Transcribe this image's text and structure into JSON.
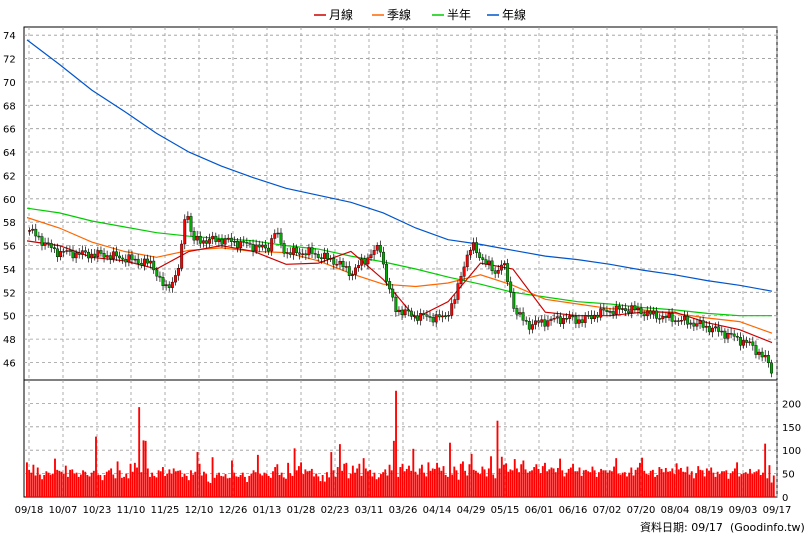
{
  "chart_data": [
    {
      "type": "line",
      "legend": [
        "月線",
        "季線",
        "半年",
        "年線"
      ],
      "colors": {
        "candle_up": "#ff0000",
        "candle_down": "#00aa00",
        "月線": "#cc0000",
        "季線": "#ff6600",
        "半年": "#00cc00",
        "年線": "#0055cc",
        "volume": "#ff0000",
        "grid": "#999999"
      },
      "x_ticks": [
        "09/18",
        "10/07",
        "10/23",
        "11/10",
        "11/25",
        "12/10",
        "12/26",
        "01/13",
        "01/28",
        "02/23",
        "03/11",
        "03/26",
        "04/14",
        "04/29",
        "05/15",
        "06/01",
        "06/16",
        "07/02",
        "07/20",
        "08/04",
        "08/19",
        "09/03",
        "09/17"
      ],
      "y_ticks": [
        46,
        48,
        50,
        52,
        54,
        56,
        58,
        60,
        62,
        64,
        66,
        68,
        70,
        72,
        74
      ],
      "ylim": [
        44.5,
        74.7
      ],
      "series": [
        {
          "name": "年線",
          "values": [
            73.6,
            71.5,
            69.3,
            67.5,
            65.6,
            64.0,
            62.8,
            61.8,
            60.9,
            60.3,
            59.7,
            58.8,
            57.5,
            56.5,
            56.1,
            55.6,
            55.1,
            54.8,
            54.4,
            53.9,
            53.5,
            53.0,
            52.6,
            52.1
          ]
        },
        {
          "name": "半年",
          "values": [
            59.2,
            58.8,
            58.1,
            57.6,
            57.1,
            56.8,
            56.6,
            56.4,
            56.0,
            55.7,
            55.1,
            54.6,
            54.0,
            53.3,
            52.7,
            52.0,
            51.6,
            51.2,
            51.0,
            50.7,
            50.5,
            50.2,
            50.0,
            50.0
          ]
        },
        {
          "name": "季線",
          "values": [
            58.4,
            57.5,
            56.3,
            55.5,
            55.0,
            55.6,
            55.8,
            55.5,
            55.4,
            54.7,
            53.6,
            52.7,
            52.5,
            52.8,
            53.5,
            52.6,
            51.4,
            51.0,
            50.6,
            50.5,
            50.2,
            49.8,
            49.5,
            48.5
          ]
        },
        {
          "name": "月線",
          "values": [
            56.4,
            56.0,
            55.0,
            54.7,
            54.0,
            55.5,
            56.0,
            55.5,
            54.4,
            54.5,
            55.5,
            53.1,
            49.8,
            51.2,
            54.5,
            54.0,
            50.3,
            50.0,
            50.0,
            50.3,
            50.3,
            49.4,
            48.8,
            47.7
          ]
        }
      ],
      "price_path": [
        [
          0,
          57.3
        ],
        [
          1,
          55.5
        ],
        [
          2,
          55.3
        ],
        [
          3,
          55.2
        ],
        [
          4,
          54.8
        ],
        [
          4.8,
          54.4
        ],
        [
          5.3,
          52.2
        ],
        [
          5.8,
          53.7
        ],
        [
          6,
          56.5
        ],
        [
          6.1,
          59.5
        ],
        [
          6.4,
          56.4
        ],
        [
          7.5,
          56.5
        ],
        [
          8.5,
          56.1
        ],
        [
          9.3,
          55.7
        ],
        [
          9.6,
          57.2
        ],
        [
          10,
          55.4
        ],
        [
          11,
          55.4
        ],
        [
          12,
          54.6
        ],
        [
          12.6,
          53.6
        ],
        [
          13,
          54.6
        ],
        [
          13.7,
          55.9
        ],
        [
          14,
          52.6
        ],
        [
          14.3,
          50.6
        ],
        [
          15,
          50.0
        ],
        [
          16.2,
          49.8
        ],
        [
          16.6,
          51.2
        ],
        [
          17,
          54.6
        ],
        [
          17.3,
          56.0
        ],
        [
          17.8,
          54.6
        ],
        [
          18.2,
          53.7
        ],
        [
          18.5,
          54.6
        ],
        [
          19,
          50.3
        ],
        [
          19.5,
          49.2
        ],
        [
          20.3,
          49.6
        ],
        [
          21,
          49.8
        ],
        [
          21.6,
          49.6
        ],
        [
          22,
          50.0
        ],
        [
          22.5,
          50.4
        ],
        [
          23.5,
          50.6
        ],
        [
          24.5,
          50.0
        ],
        [
          25.5,
          49.6
        ],
        [
          26.4,
          49.1
        ],
        [
          27.3,
          48.4
        ],
        [
          28.2,
          47.5
        ],
        [
          28.8,
          46.2
        ],
        [
          29,
          45.4
        ]
      ],
      "volume_ylim": [
        0,
        250
      ],
      "volume_ticks": [
        0,
        50,
        100,
        150,
        200
      ],
      "volume": [
        74,
        58,
        52,
        69,
        46,
        63,
        48,
        38,
        47,
        55,
        52,
        48,
        50,
        82,
        58,
        56,
        54,
        50,
        67,
        43,
        58,
        59,
        50,
        52,
        43,
        48,
        57,
        54,
        47,
        44,
        52,
        56,
        129,
        48,
        47,
        36,
        47,
        54,
        57,
        61,
        48,
        40,
        76,
        57,
        41,
        43,
        50,
        40,
        71,
        54,
        73,
        63,
        192,
        53,
        121,
        120,
        61,
        43,
        52,
        45,
        42,
        57,
        55,
        64,
        45,
        50,
        59,
        50,
        61,
        55,
        56,
        57,
        43,
        50,
        45,
        36,
        57,
        48,
        54,
        96,
        71,
        46,
        54,
        49,
        33,
        30,
        85,
        41,
        48,
        52,
        45,
        44,
        49,
        40,
        41,
        78,
        52,
        44,
        43,
        47,
        52,
        43,
        32,
        45,
        50,
        57,
        53,
        90,
        49,
        46,
        52,
        50,
        45,
        41,
        55,
        64,
        70,
        47,
        52,
        42,
        39,
        73,
        51,
        45,
        104,
        57,
        66,
        74,
        49,
        59,
        55,
        56,
        60,
        44,
        50,
        44,
        34,
        47,
        33,
        53,
        42,
        96,
        57,
        43,
        64,
        113,
        56,
        71,
        73,
        40,
        50,
        67,
        52,
        61,
        71,
        45,
        83,
        61,
        55,
        58,
        44,
        52,
        38,
        42,
        49,
        53,
        59,
        46,
        69,
        57,
        120,
        227,
        43,
        64,
        71,
        55,
        60,
        67,
        56,
        103,
        54,
        48,
        61,
        69,
        52,
        44,
        74,
        56,
        61,
        60,
        73,
        63,
        56,
        66,
        47,
        43,
        116,
        48,
        65,
        57,
        37,
        71,
        76,
        56,
        46,
        70,
        92,
        58,
        56,
        52,
        49,
        65,
        59,
        44,
        61,
        87,
        48,
        40,
        163,
        61,
        86,
        69,
        72,
        54,
        59,
        57,
        81,
        61,
        53,
        70,
        78,
        59,
        52,
        55,
        57,
        64,
        70,
        60,
        51,
        66,
        73,
        55,
        59,
        63,
        61,
        53,
        62,
        82,
        57,
        44,
        52,
        60,
        63,
        71,
        55,
        55,
        63,
        45,
        57,
        58,
        55,
        53,
        65,
        57,
        43,
        53,
        60,
        57,
        57,
        52,
        57,
        55,
        65,
        83,
        50,
        48,
        52,
        53,
        44,
        52,
        63,
        46,
        58,
        63,
        73,
        84,
        56,
        50,
        48,
        56,
        58,
        43,
        47,
        64,
        60,
        53,
        62,
        54,
        55,
        61,
        49,
        72,
        59,
        62,
        54,
        53,
        65,
        48,
        55,
        40,
        51,
        66,
        58,
        57,
        44,
        61,
        56,
        63,
        52,
        43,
        54,
        49,
        55,
        55,
        57,
        39,
        51,
        55,
        61,
        74,
        44,
        49,
        51,
        53,
        50,
        60,
        49,
        53,
        55,
        59,
        47,
        52,
        114,
        40,
        68,
        31,
        46
      ]
    }
  ],
  "footer": {
    "date_text": "資料日期: 09/17",
    "source_text": "(Goodinfo.tw)"
  }
}
